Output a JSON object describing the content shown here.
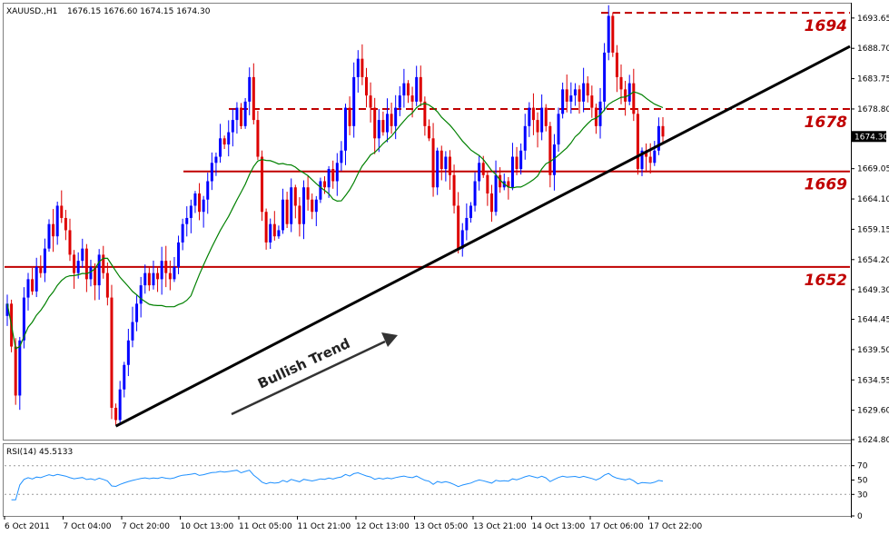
{
  "header": {
    "symbol": "XAUUSD.,H1",
    "ohlc": "1676.15 1676.60 1674.15 1674.30"
  },
  "rsi_label": "RSI(14) 45.5133",
  "trend_label": "Bullish Trend",
  "current_price": "1674.30",
  "colors": {
    "up": "#0000ff",
    "down": "#dd0000",
    "ma": "#008000",
    "level": "#c00000",
    "rsi": "#1e90ff",
    "trend": "#000000"
  },
  "chart_data": [
    {
      "type": "candlestick",
      "title": "XAUUSD.,H1 1676.15 1676.60 1674.15 1674.30",
      "y_ticks": [
        "1693.65",
        "1688.70",
        "1683.75",
        "1678.80",
        "1674.30",
        "1669.05",
        "1664.10",
        "1659.15",
        "1654.20",
        "1649.30",
        "1644.45",
        "1639.50",
        "1634.55",
        "1629.60",
        "1624.80"
      ],
      "ylim": [
        1624.8,
        1696.0
      ],
      "x_labels": [
        "6 Oct 2011",
        "7 Oct 04:00",
        "7 Oct 20:00",
        "10 Oct 13:00",
        "11 Oct 05:00",
        "11 Oct 21:00",
        "12 Oct 13:00",
        "13 Oct 05:00",
        "13 Oct 21:00",
        "14 Oct 13:00",
        "17 Oct 06:00",
        "17 Oct 22:00"
      ],
      "levels": [
        {
          "label": "1694",
          "value": 1694.5,
          "style": "dashed"
        },
        {
          "label": "1678",
          "value": 1678.8,
          "style": "dashed"
        },
        {
          "label": "1669",
          "value": 1668.6,
          "style": "solid"
        },
        {
          "label": "1652",
          "value": 1653.0,
          "style": "solid"
        }
      ],
      "trendline": {
        "name": "Bullish Trend",
        "from": [
          26,
          1627.0
        ],
        "to": [
          189,
          1684.5
        ]
      },
      "ma_period": 20,
      "close": [
        1647,
        1640,
        1632,
        1641,
        1648,
        1651,
        1649,
        1653,
        1652,
        1656,
        1660,
        1658,
        1663,
        1661,
        1659,
        1655,
        1652,
        1654,
        1656,
        1651,
        1653,
        1650,
        1655,
        1652,
        1648,
        1630,
        1628,
        1633,
        1637,
        1641,
        1644,
        1647,
        1650,
        1652,
        1650,
        1652,
        1651,
        1654,
        1652,
        1651,
        1653,
        1657,
        1660,
        1661,
        1663,
        1665,
        1662,
        1664,
        1667,
        1670,
        1671,
        1674,
        1673,
        1675,
        1677,
        1679,
        1676,
        1680,
        1684,
        1677,
        1671,
        1662,
        1657,
        1660,
        1658,
        1659,
        1664,
        1660,
        1666,
        1663,
        1660,
        1666,
        1664,
        1662,
        1664,
        1667,
        1666,
        1669,
        1667,
        1670,
        1672,
        1679,
        1676,
        1684,
        1687,
        1684,
        1681,
        1679,
        1674,
        1677,
        1675,
        1678,
        1676,
        1679,
        1681,
        1683,
        1681,
        1680,
        1684,
        1680,
        1676,
        1674,
        1666,
        1672,
        1669,
        1671,
        1668,
        1663,
        1656,
        1659,
        1661,
        1663,
        1667,
        1670,
        1668,
        1665,
        1662,
        1668,
        1666,
        1667,
        1666,
        1671,
        1669,
        1672,
        1676,
        1679,
        1677,
        1675,
        1679,
        1676,
        1668,
        1673,
        1678,
        1682,
        1680,
        1681,
        1682,
        1680,
        1683,
        1681,
        1679,
        1676,
        1680,
        1688,
        1694,
        1688,
        1684,
        1682,
        1680,
        1683,
        1678,
        1669,
        1672,
        1671,
        1670,
        1672,
        1676,
        1674.3
      ]
    },
    {
      "type": "line",
      "title": "RSI(14) 45.5133",
      "y_ticks": [
        70,
        50,
        30,
        0
      ],
      "ylim": [
        0,
        100
      ],
      "guides": [
        70,
        30
      ]
    }
  ]
}
